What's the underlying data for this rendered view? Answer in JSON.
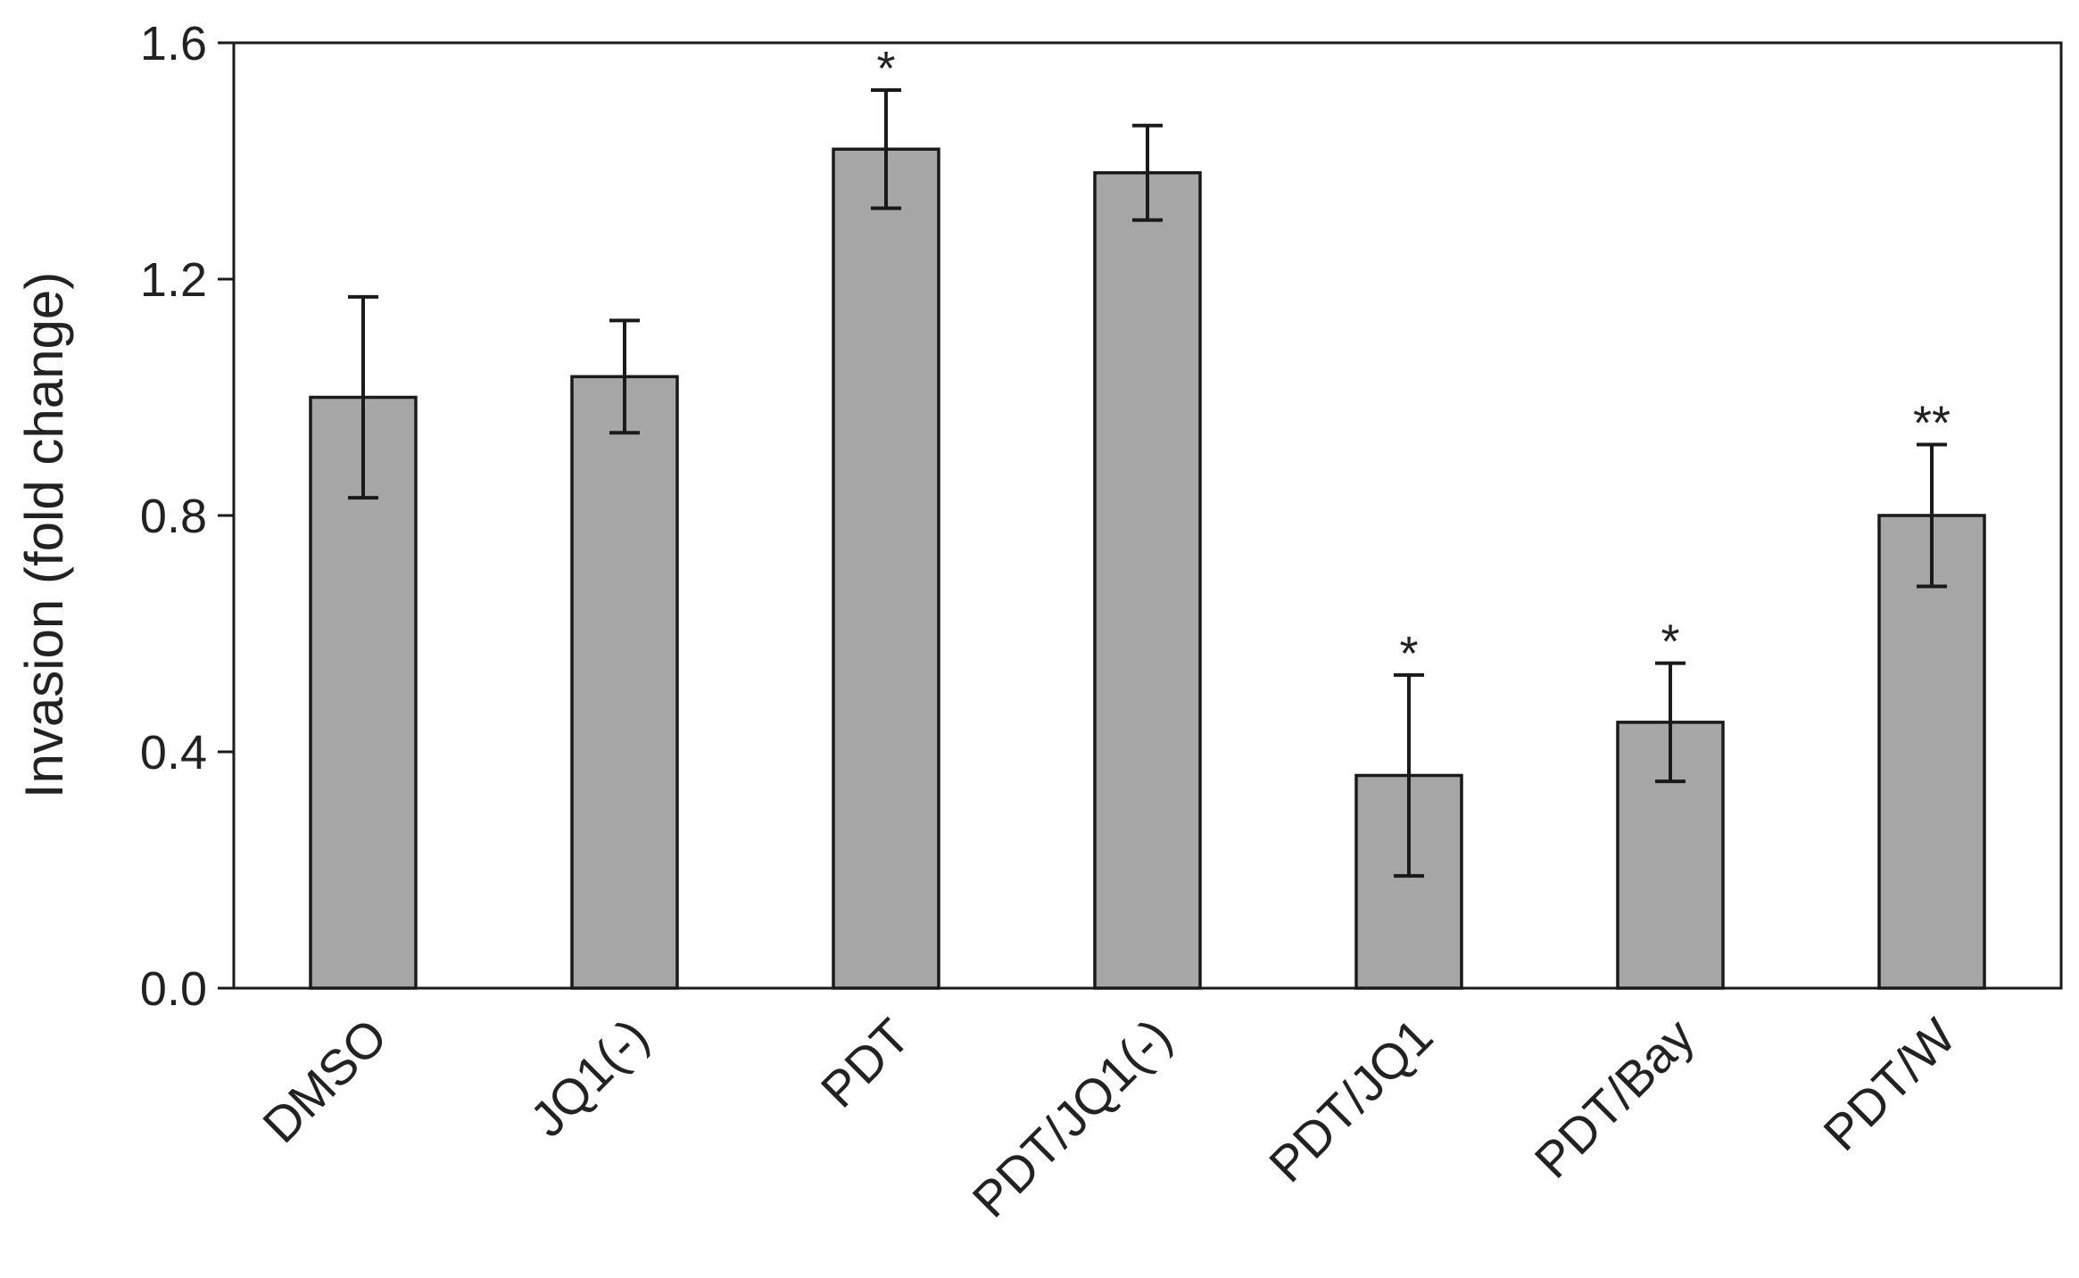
{
  "chart_data": {
    "type": "bar",
    "categories": [
      "DMSO",
      "JQ1(-)",
      "PDT",
      "PDT/JQ1(-)",
      "PDT/JQ1",
      "PDT/Bay",
      "PDT/W"
    ],
    "values": [
      1.0,
      1.035,
      1.42,
      1.38,
      0.36,
      0.45,
      0.8
    ],
    "errors": [
      0.17,
      0.095,
      0.1,
      0.08,
      0.17,
      0.1,
      0.12
    ],
    "significance": [
      "",
      "",
      "*",
      "",
      "*",
      "*",
      "**"
    ],
    "xlabel": "",
    "ylabel": "Invasion (fold change)",
    "ylim": [
      0,
      1.6
    ],
    "yticks": [
      "0.0",
      "0.4",
      "0.8",
      "1.2",
      "1.6"
    ],
    "grid": false,
    "colors": {
      "bar": "#a6a6a6",
      "stroke": "#1a1a1a",
      "text": "#222222"
    }
  }
}
